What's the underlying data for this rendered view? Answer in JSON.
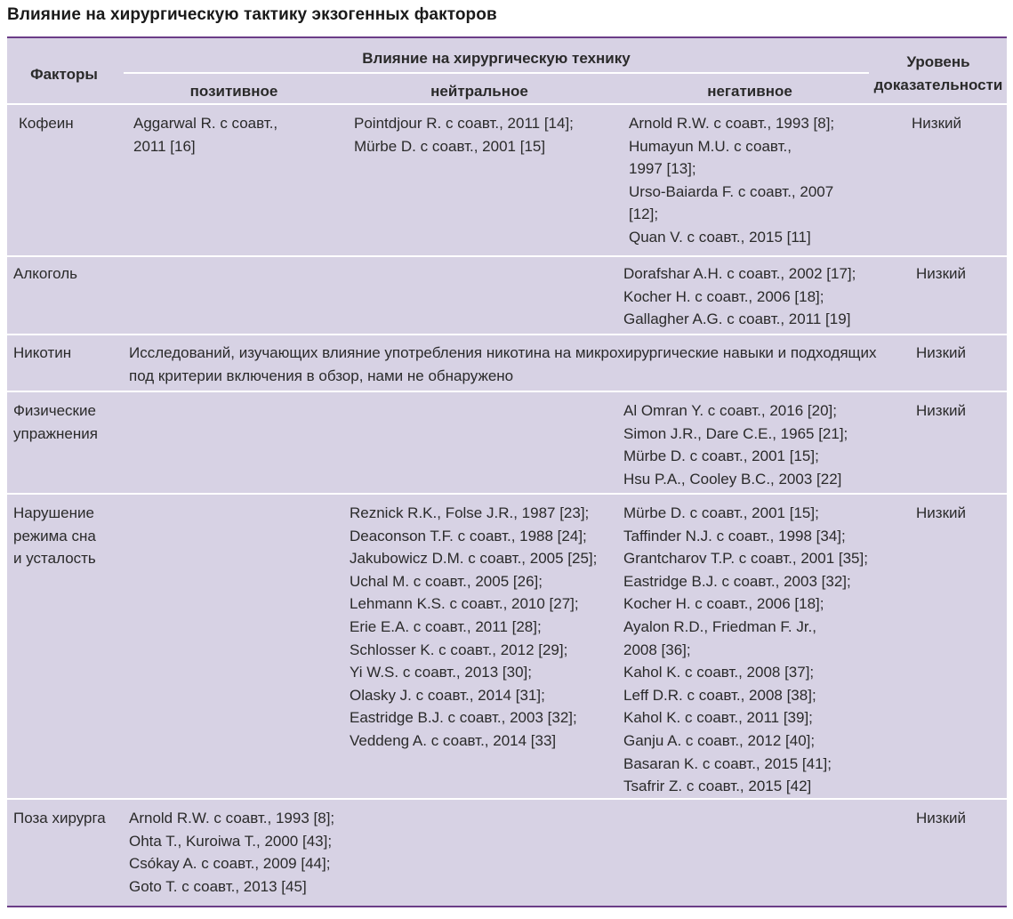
{
  "title": "Влияние на хирургическую тактику экзогенных факторов",
  "header": {
    "factors": "Факторы",
    "influence": "Влияние на хирургическую технику",
    "positive": "позитивное",
    "neutral": "нейтральное",
    "negative": "негативное",
    "evidence": "Уровень\nдоказательности"
  },
  "rows": [
    {
      "factor": "Кофеин",
      "positive": "Aggarwal R. с соавт.,\n2011 [16]",
      "neutral": "Pointdjour R. с соавт., 2011 [14];\nMürbe D. с соавт., 2001 [15]",
      "negative": "Arnold R.W. с соавт., 1993 [8];\nHumayun M.U. с соавт.,\n1997 [13];\nUrso-Baiarda F. с соавт., 2007\n[12];\nQuan V. с соавт., 2015 [11]",
      "level": "Низкий"
    },
    {
      "factor": "Алкоголь",
      "positive": "",
      "neutral": "",
      "negative": "Dorafshar A.H. с соавт., 2002 [17];\nKocher H. с соавт., 2006 [18];\nGallagher A.G. с соавт., 2011 [19]",
      "level": "Низкий"
    },
    {
      "factor": "Никотин",
      "span": "Исследований, изучающих влияние употребления никотина на микрохирургические навыки и подходящих\nпод критерии включения в обзор, нами не обнаружено",
      "level": "Низкий"
    },
    {
      "factor": "Физические\nупражнения",
      "positive": "",
      "neutral": "",
      "negative": "Al Omran Y. с соавт., 2016 [20];\nSimon J.R., Dare C.E., 1965 [21];\nMürbe D. с соавт., 2001 [15];\nHsu P.A., Cooley B.C., 2003 [22]",
      "level": "Низкий"
    },
    {
      "factor": "Нарушение\nрежима сна\nи усталость",
      "positive": "",
      "neutral": "Reznick R.K., Folse J.R., 1987 [23];\nDeaconson T.F. с соавт., 1988 [24];\nJakubowicz D.M. с соавт., 2005 [25];\nUchal M. с соавт., 2005 [26];\nLehmann K.S. с соавт., 2010 [27];\nErie E.A. с соавт., 2011 [28];\nSchlosser K. с соавт., 2012 [29];\nYi W.S. с соавт., 2013 [30];\nOlasky J. с соавт., 2014 [31];\nEastridge B.J. с соавт., 2003 [32];\nVeddeng A. с соавт., 2014 [33]",
      "negative": "Mürbe D. с соавт., 2001 [15];\nTaffinder N.J. с соавт., 1998 [34];\nGrantcharov T.P. с соавт., 2001 [35];\nEastridge B.J. с соавт., 2003 [32];\nKocher H. с соавт., 2006 [18];\nAyalon R.D., Friedman F. Jr.,\n2008 [36];\nKahol K. с соавт., 2008 [37];\nLeff D.R. с соавт., 2008 [38];\nKahol K. с соавт., 2011 [39];\nGanju A. с соавт., 2012 [40];\nBasaran K. с соавт., 2015 [41];\nTsafrir Z. с соавт., 2015 [42]",
      "level": "Низкий"
    },
    {
      "factor": "Поза хирурга",
      "positive": "Arnold R.W. с соавт., 1993 [8];\nOhta T., Kuroiwa T., 2000 [43];\nCsókay A. с соавт., 2009 [44];\nGoto T. с соавт., 2013 [45]",
      "neutral": "",
      "negative": "",
      "level": "Низкий"
    }
  ]
}
